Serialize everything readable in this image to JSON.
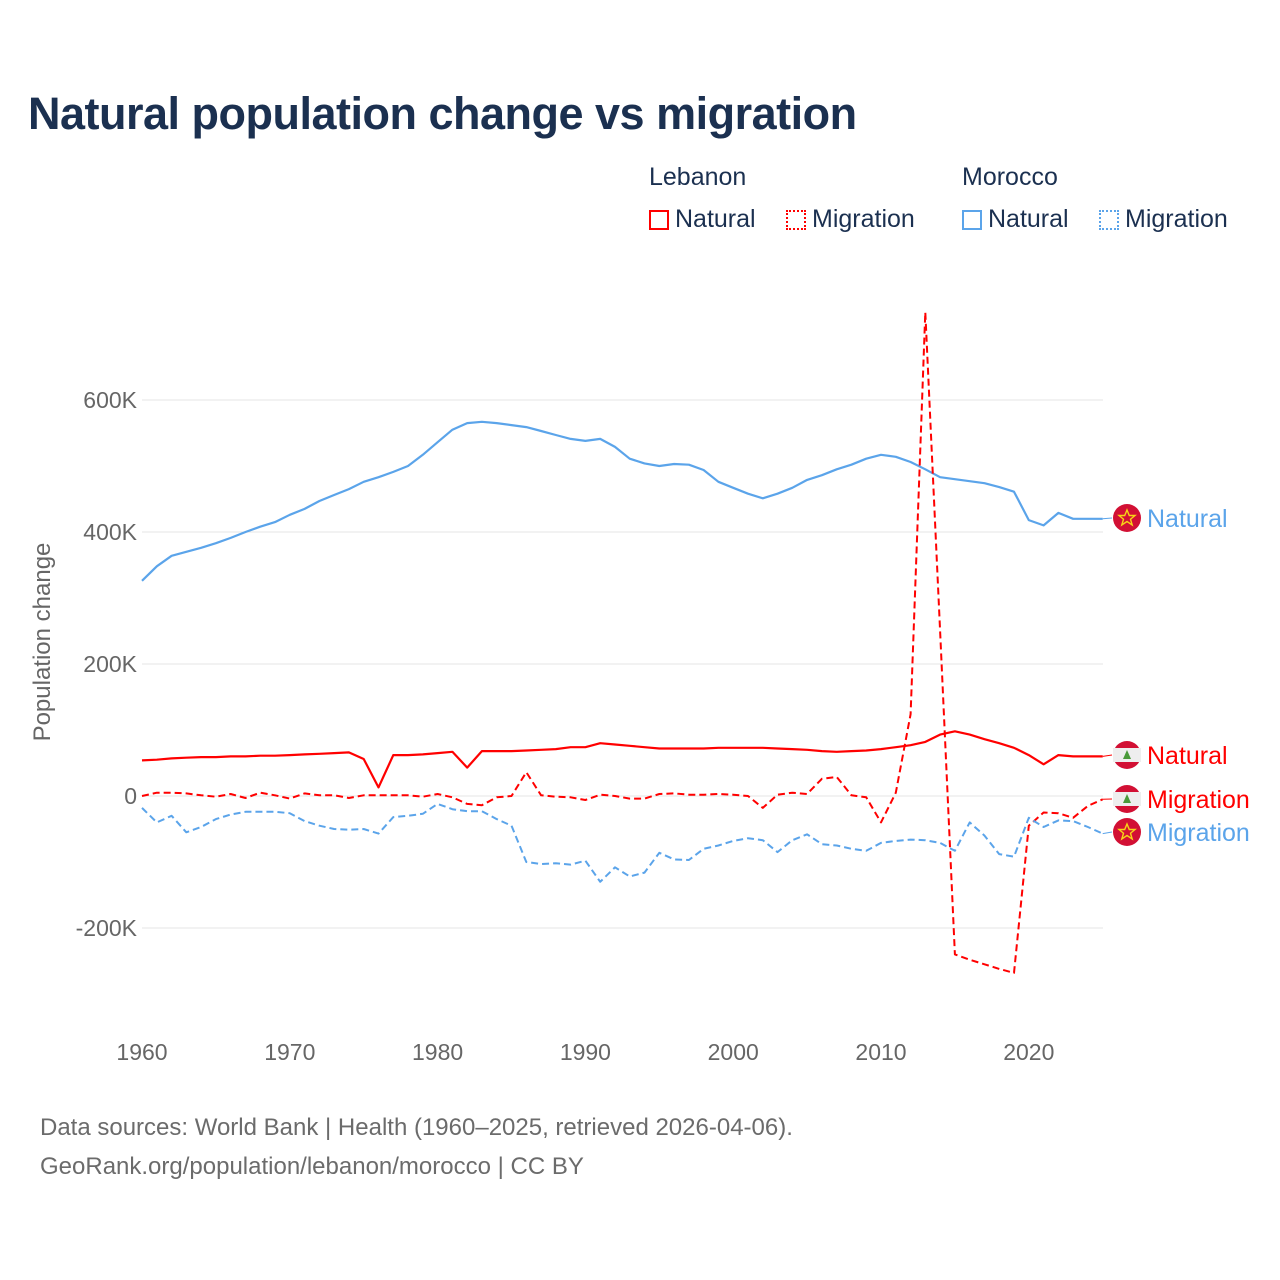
{
  "title": "Natural population change vs migration",
  "legend": {
    "groups": [
      {
        "name": "Lebanon",
        "items": [
          {
            "label": "Natural",
            "style": "solid",
            "color": "#ff0000"
          },
          {
            "label": "Migration",
            "style": "dotted",
            "color": "#ff0000"
          }
        ]
      },
      {
        "name": "Morocco",
        "items": [
          {
            "label": "Natural",
            "style": "solid",
            "color": "#5ba4ea"
          },
          {
            "label": "Migration",
            "style": "dotted",
            "color": "#5ba4ea"
          }
        ]
      }
    ]
  },
  "source": {
    "line1": "Data sources: World Bank | Health (1960–2025, retrieved 2026-04-06).",
    "line2": "GeoRank.org/population/lebanon/morocco | CC BY"
  },
  "chart_data": {
    "type": "line",
    "title": "Natural population change vs migration",
    "xlabel": "",
    "ylabel": "Population change",
    "xlim": [
      1960,
      2025
    ],
    "ylim": [
      -300000,
      750000
    ],
    "x_ticks": [
      1960,
      1970,
      1980,
      1990,
      2000,
      2010,
      2020
    ],
    "x_tick_labels": [
      "1960",
      "1970",
      "1980",
      "1990",
      "2000",
      "2010",
      "2020"
    ],
    "y_ticks": [
      -200000,
      0,
      200000,
      400000,
      600000
    ],
    "y_tick_labels": [
      "-200K",
      "0",
      "200K",
      "400K",
      "600K"
    ],
    "grid": true,
    "legend_position": "top-right",
    "x_start": 1960,
    "series": [
      {
        "name": "Morocco Natural",
        "end_label": "Natural",
        "country": "Morocco",
        "color": "#5ba4ea",
        "dash": "solid",
        "values": [
          326,
          348,
          364,
          370,
          376,
          383,
          391,
          400,
          408,
          415,
          426,
          435,
          447,
          456,
          465,
          476,
          483,
          491,
          500,
          517,
          536,
          555,
          565,
          567,
          565,
          562,
          559,
          553,
          547,
          541,
          538,
          541,
          529,
          511,
          504,
          500,
          503,
          502,
          494,
          476,
          467,
          458,
          451,
          458,
          467,
          479,
          486,
          495,
          502,
          511,
          517,
          514,
          506,
          495,
          483,
          480,
          477,
          474,
          468,
          461,
          418,
          410,
          429,
          420,
          420,
          420
        ]
      },
      {
        "name": "Lebanon Natural",
        "end_label": "Natural",
        "country": "Lebanon",
        "color": "#ff0000",
        "dash": "solid",
        "values": [
          54,
          55,
          57,
          58,
          59,
          59,
          60,
          60,
          61,
          61,
          62,
          63,
          64,
          65,
          66,
          56,
          13,
          62,
          62,
          63,
          65,
          67,
          43,
          68,
          68,
          68,
          69,
          70,
          71,
          74,
          74,
          80,
          78,
          76,
          74,
          72,
          72,
          72,
          72,
          73,
          73,
          73,
          73,
          72,
          71,
          70,
          68,
          67,
          68,
          69,
          71,
          74,
          77,
          82,
          93,
          98,
          93,
          86,
          80,
          73,
          62,
          48,
          62,
          60,
          60,
          60
        ]
      },
      {
        "name": "Lebanon Migration",
        "end_label": "Migration",
        "country": "Lebanon",
        "color": "#ff0000",
        "dash": "dashed",
        "values": [
          0,
          5,
          5,
          4,
          1,
          -1,
          3,
          -3,
          5,
          1,
          -4,
          4,
          1,
          1,
          -3,
          1,
          1,
          1,
          1,
          -1,
          3,
          -2,
          -12,
          -14,
          -2,
          0,
          36,
          1,
          -1,
          -2,
          -6,
          2,
          0,
          -4,
          -4,
          3,
          4,
          2,
          2,
          3,
          2,
          0,
          -18,
          2,
          5,
          3,
          26,
          29,
          1,
          -2,
          -40,
          5,
          124,
          733,
          250,
          -240,
          -248,
          -255,
          -262,
          -268,
          -45,
          -25,
          -26,
          -33,
          -15,
          -5
        ]
      },
      {
        "name": "Morocco Migration",
        "end_label": "Migration",
        "country": "Morocco",
        "color": "#5ba4ea",
        "dash": "dashed",
        "values": [
          -18,
          -40,
          -30,
          -55,
          -47,
          -35,
          -28,
          -24,
          -24,
          -24,
          -26,
          -38,
          -45,
          -50,
          -51,
          -50,
          -57,
          -32,
          -30,
          -27,
          -12,
          -20,
          -23,
          -23,
          -35,
          -45,
          -100,
          -103,
          -102,
          -104,
          -98,
          -130,
          -108,
          -122,
          -116,
          -86,
          -96,
          -97,
          -80,
          -75,
          -68,
          -64,
          -67,
          -85,
          -67,
          -58,
          -73,
          -75,
          -80,
          -83,
          -71,
          -68,
          -66,
          -67,
          -71,
          -83,
          -40,
          -60,
          -88,
          -92,
          -33,
          -47,
          -37,
          -38,
          -47,
          -57
        ]
      }
    ],
    "value_unit": "thousands"
  }
}
